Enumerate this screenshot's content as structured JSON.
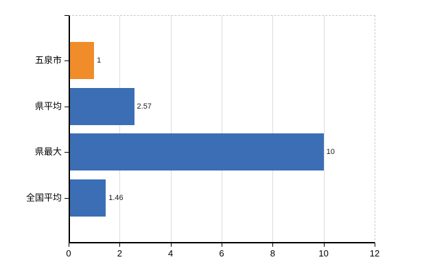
{
  "chart_data": {
    "type": "bar",
    "orientation": "horizontal",
    "title": "",
    "xlabel": "",
    "ylabel": "",
    "categories": [
      "五泉市",
      "県平均",
      "県最大",
      "全国平均"
    ],
    "values": [
      1,
      2.57,
      10,
      1.46
    ],
    "value_labels": [
      "1",
      "2.57",
      "10",
      "1.46"
    ],
    "bar_colors": [
      "#F18C2B",
      "#3B6EB5",
      "#3B6EB5",
      "#3B6EB5"
    ],
    "xlim": [
      0,
      12
    ],
    "x_ticks": [
      0,
      2,
      4,
      6,
      8,
      10,
      12
    ],
    "x_tick_labels": [
      "0",
      "2",
      "4",
      "6",
      "8",
      "10",
      "12"
    ],
    "grid": true,
    "legend": null,
    "colors": {
      "highlight_bar": "#F18C2B",
      "default_bar": "#3B6EB5",
      "gridline": "#DCDCDC",
      "dashed_border": "#C9C9C9",
      "axis": "#000000",
      "text": "#1A1A1A",
      "background": "#FFFFFF"
    }
  }
}
